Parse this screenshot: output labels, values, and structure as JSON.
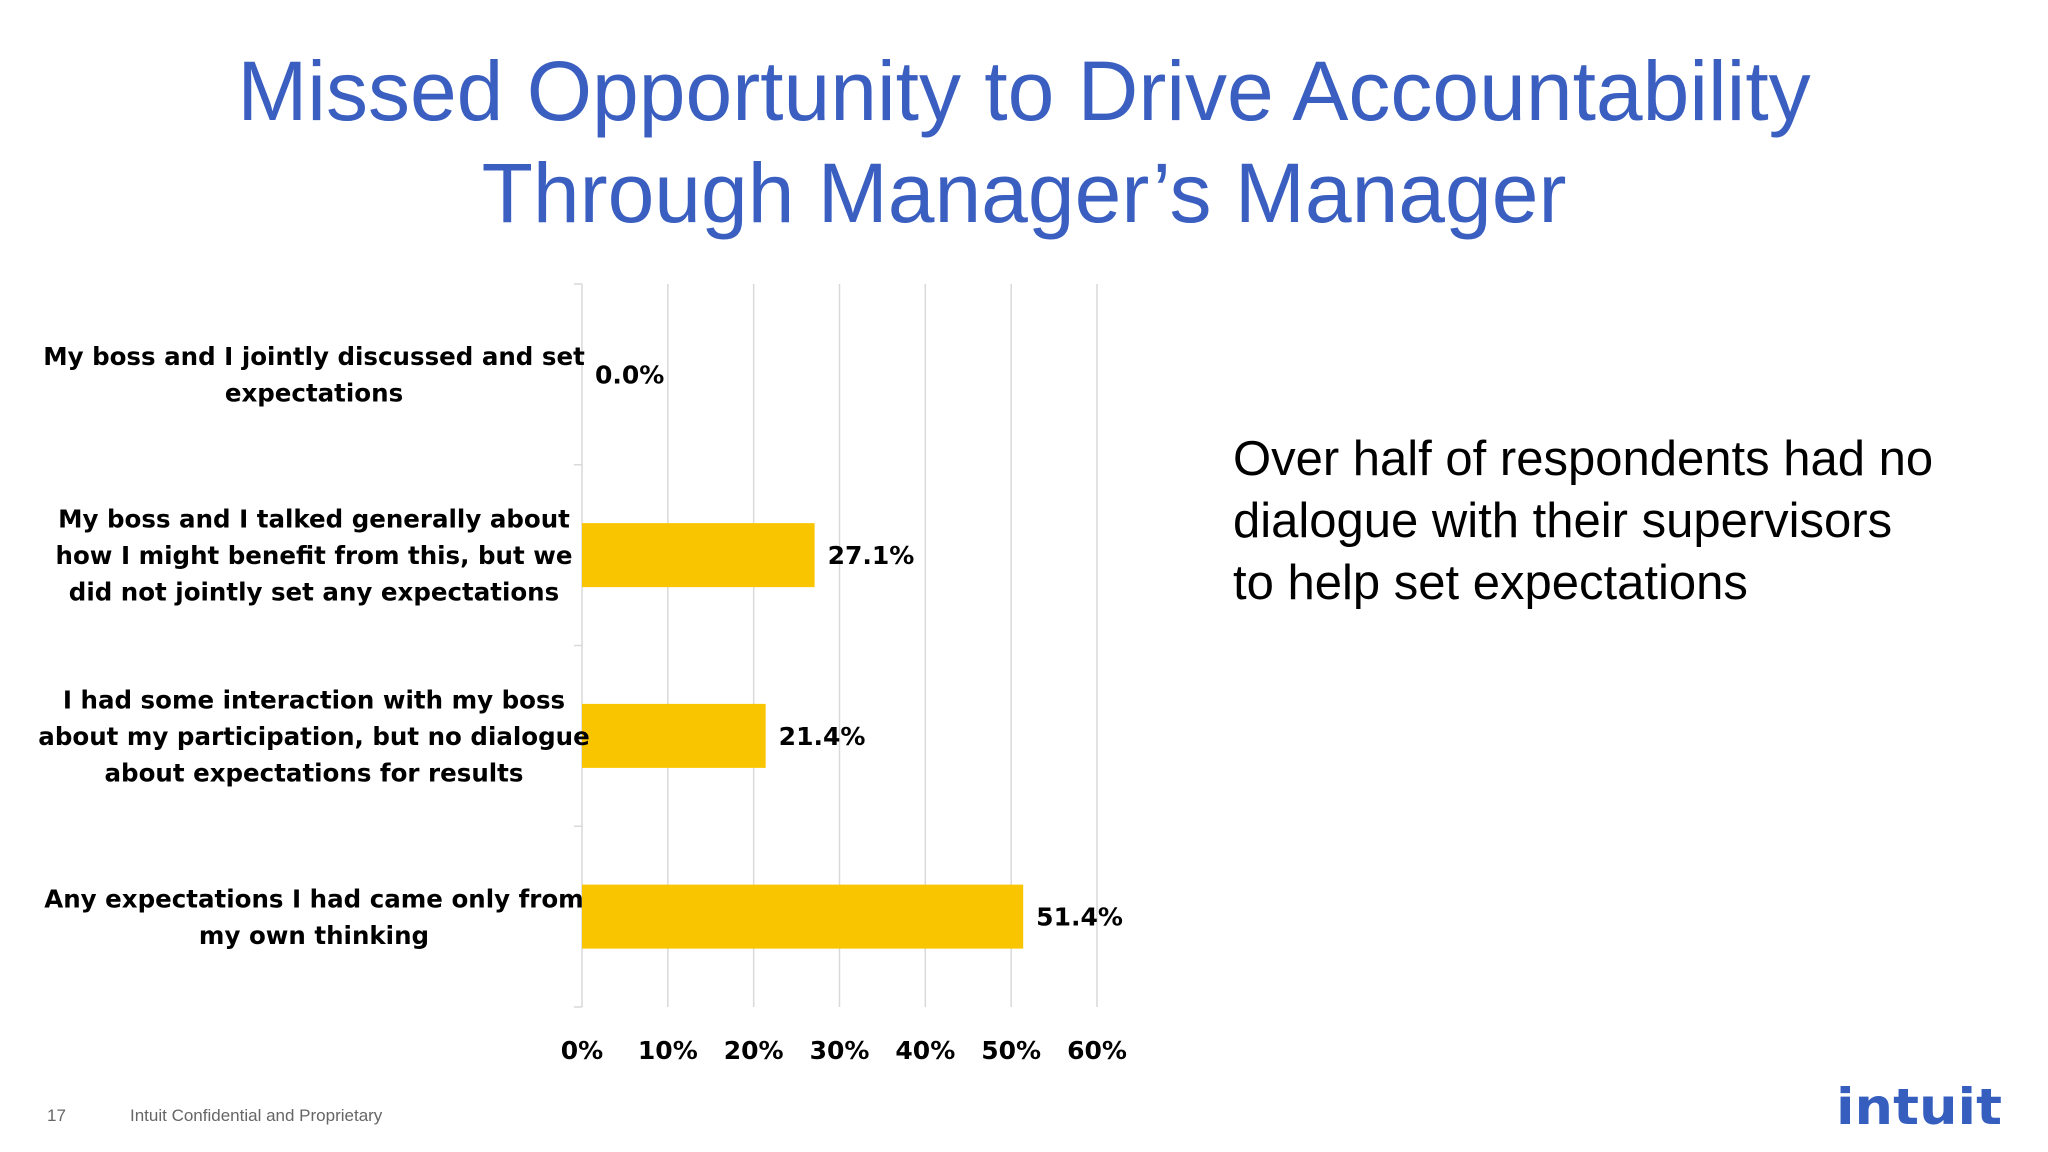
{
  "slide": {
    "title_lines": [
      "Missed Opportunity to Drive Accountability",
      "Through Manager’s Manager"
    ],
    "callout_lines": [
      "Over half of respondents had no",
      "dialogue with their supervisors",
      "to help set expectations"
    ],
    "slide_number": "17",
    "footer": "Intuit Confidential and Proprietary",
    "logo_text": "intuit",
    "colors": {
      "title": "#3a5fc0",
      "bar": "#f9c500",
      "gridline": "#d9d9d9",
      "logo": "#365ebf"
    }
  },
  "chart_data": {
    "type": "bar",
    "orientation": "horizontal",
    "categories": [
      [
        "My boss and I jointly discussed and set",
        "expectations"
      ],
      [
        "My boss and I talked generally about",
        "how I might benefit from this, but we",
        "did not jointly set any expectations"
      ],
      [
        "I had some interaction with my boss",
        "about my participation, but no dialogue",
        "about expectations for results"
      ],
      [
        "Any expectations I had came only from",
        "my own thinking"
      ]
    ],
    "values": [
      0.0,
      27.1,
      21.4,
      51.4
    ],
    "data_labels": [
      "0.0%",
      "27.1%",
      "21.4%",
      "51.4%"
    ],
    "xlim": [
      0,
      60
    ],
    "xticks": [
      "0%",
      "10%",
      "20%",
      "30%",
      "40%",
      "50%",
      "60%"
    ],
    "grid": true,
    "title": "",
    "xlabel": "",
    "ylabel": ""
  }
}
